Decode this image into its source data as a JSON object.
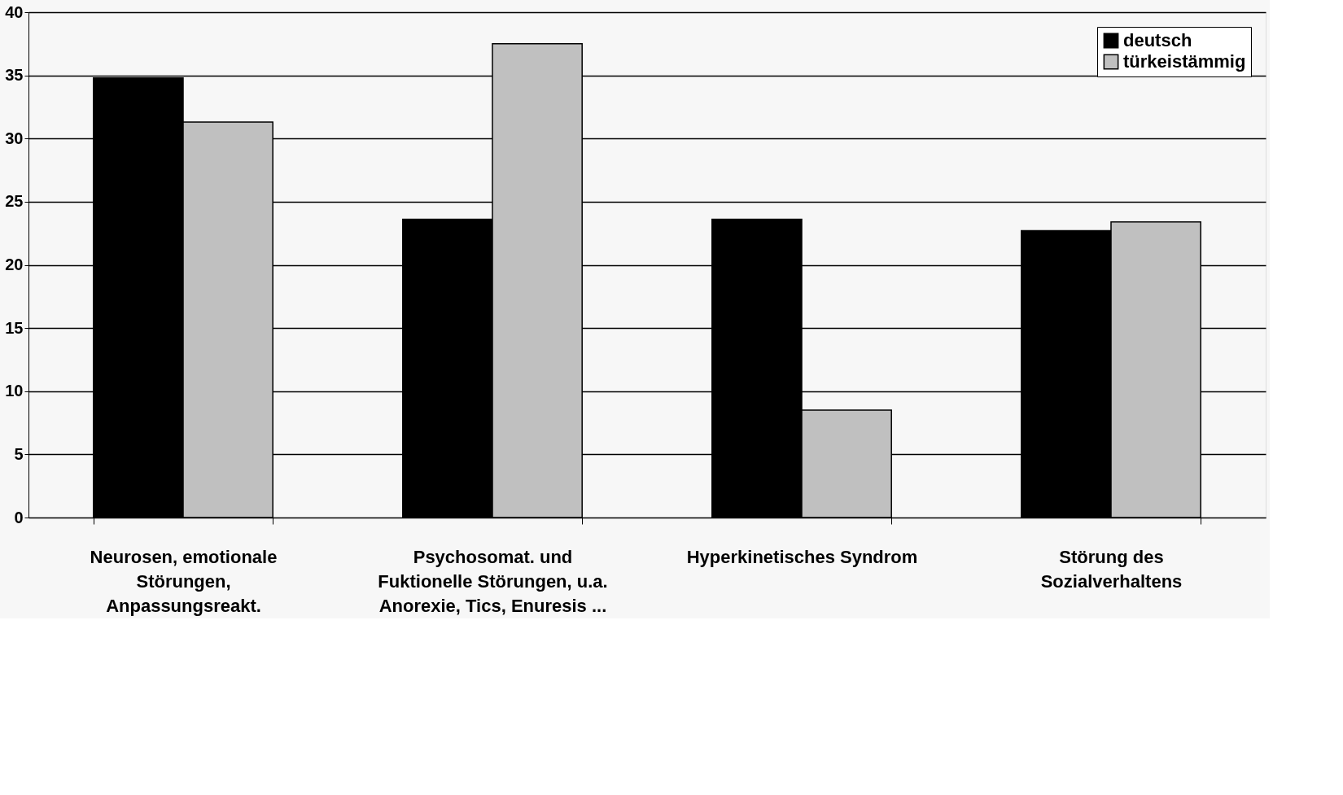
{
  "chart_data": {
    "type": "bar",
    "categories": [
      "Neurosen, emotionale\nStörungen,\nAnpassungsreakt.",
      "Psychosomat.  und\nFuktionelle Störungen, u.a.\nAnorexie, Tics, Enuresis ...",
      "Hyperkinetisches Syndrom",
      "Störung des\nSozialverhaltens"
    ],
    "series": [
      {
        "name": "deutsch",
        "color": "#000000",
        "values": [
          34.8,
          23.6,
          23.6,
          22.7
        ]
      },
      {
        "name": "türkeistämmig",
        "color": "#c0c0c0",
        "values": [
          31.3,
          37.5,
          8.5,
          23.4
        ]
      }
    ],
    "ylim": [
      0,
      40
    ],
    "yticks": [
      0,
      5,
      10,
      15,
      20,
      25,
      30,
      35,
      40
    ],
    "grid": "y",
    "legend": "top right"
  }
}
